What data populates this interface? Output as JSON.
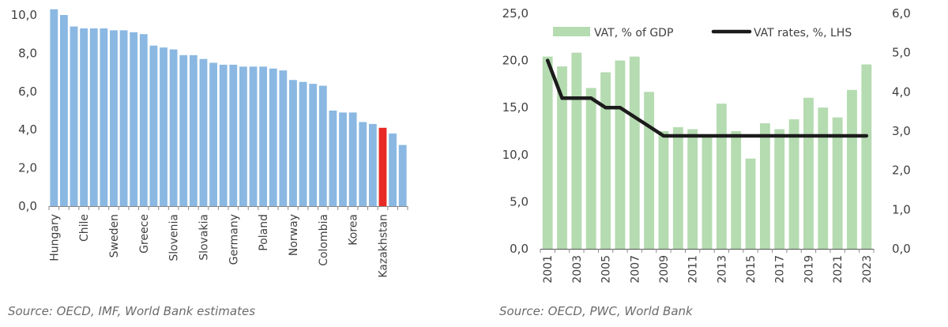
{
  "chart_data": [
    {
      "type": "bar",
      "title": "",
      "xlabel": "",
      "ylabel": "",
      "ylim": [
        0,
        10
      ],
      "yticks": [
        "0,0",
        "2,0",
        "4,0",
        "6,0",
        "8,0",
        "10,0"
      ],
      "yticks_values": [
        0,
        2,
        4,
        6,
        8,
        10
      ],
      "grid": false,
      "legend": "none",
      "colors": {
        "default": "#8ab8e2",
        "highlight": "#e82a26"
      },
      "highlight_category": "Kazakhstan",
      "bar_count": 36,
      "labeled_categories": [
        {
          "index": 0,
          "label": "Hungary"
        },
        {
          "index": 3,
          "label": "Chile"
        },
        {
          "index": 6,
          "label": "Sweden"
        },
        {
          "index": 9,
          "label": "Greece"
        },
        {
          "index": 12,
          "label": "Slovenia"
        },
        {
          "index": 15,
          "label": "Slovakia"
        },
        {
          "index": 18,
          "label": "Germany"
        },
        {
          "index": 21,
          "label": "Poland"
        },
        {
          "index": 24,
          "label": "Norway"
        },
        {
          "index": 27,
          "label": "Colombia"
        },
        {
          "index": 30,
          "label": "Korea"
        },
        {
          "index": 33,
          "label": "Kazakhstan"
        }
      ],
      "values": [
        10.3,
        10.0,
        9.4,
        9.3,
        9.3,
        9.3,
        9.2,
        9.2,
        9.1,
        9.0,
        8.4,
        8.3,
        8.2,
        7.9,
        7.9,
        7.7,
        7.5,
        7.4,
        7.4,
        7.3,
        7.3,
        7.3,
        7.2,
        7.1,
        6.6,
        6.5,
        6.4,
        6.3,
        5.0,
        4.9,
        4.9,
        4.4,
        4.3,
        4.1,
        3.8,
        3.2
      ],
      "source": "Source: OECD, IMF, World Bank estimates"
    },
    {
      "type": "bar+line",
      "title": "",
      "categories": [
        "2001",
        "2002",
        "2003",
        "2004",
        "2005",
        "2006",
        "2007",
        "2008",
        "2009",
        "2010",
        "2011",
        "2012",
        "2013",
        "2014",
        "2015",
        "2016",
        "2017",
        "2018",
        "2019",
        "2020",
        "2021",
        "2022",
        "2023"
      ],
      "x_tick_labels": [
        "2001",
        "2003",
        "2005",
        "2007",
        "2009",
        "2011",
        "2013",
        "2015",
        "2017",
        "2019",
        "2021",
        "2023"
      ],
      "left_axis": {
        "ylim": [
          0,
          25
        ],
        "ticks": [
          "0,0",
          "5,0",
          "10,0",
          "15,0",
          "20,0",
          "25,0"
        ],
        "tick_values": [
          0,
          5,
          10,
          15,
          20,
          25
        ]
      },
      "right_axis": {
        "ylim": [
          0,
          6
        ],
        "ticks": [
          "0,0",
          "1,0",
          "2,0",
          "3,0",
          "4,0",
          "5,0",
          "6,0"
        ],
        "tick_values": [
          0,
          1,
          2,
          3,
          4,
          5,
          6
        ]
      },
      "legend": "top",
      "grid": false,
      "series": [
        {
          "name": "VAT, % of GDP",
          "type": "bar",
          "axis": "right",
          "color": "#b5dbb1",
          "values": [
            4.9,
            4.65,
            5.0,
            4.1,
            4.5,
            4.8,
            4.9,
            4.0,
            3.0,
            3.1,
            3.05,
            2.9,
            3.7,
            3.0,
            2.3,
            3.2,
            3.05,
            3.3,
            3.85,
            3.6,
            3.35,
            4.05,
            4.7
          ]
        },
        {
          "name": "VAT rates, %, LHS",
          "type": "line",
          "axis": "left",
          "color": "#1c1c1c",
          "values": [
            20,
            16,
            16,
            16,
            15,
            15,
            14,
            13,
            12,
            12,
            12,
            12,
            12,
            12,
            12,
            12,
            12,
            12,
            12,
            12,
            12,
            12,
            12
          ]
        }
      ],
      "source": "Source: OECD, PWC, World Bank"
    }
  ]
}
